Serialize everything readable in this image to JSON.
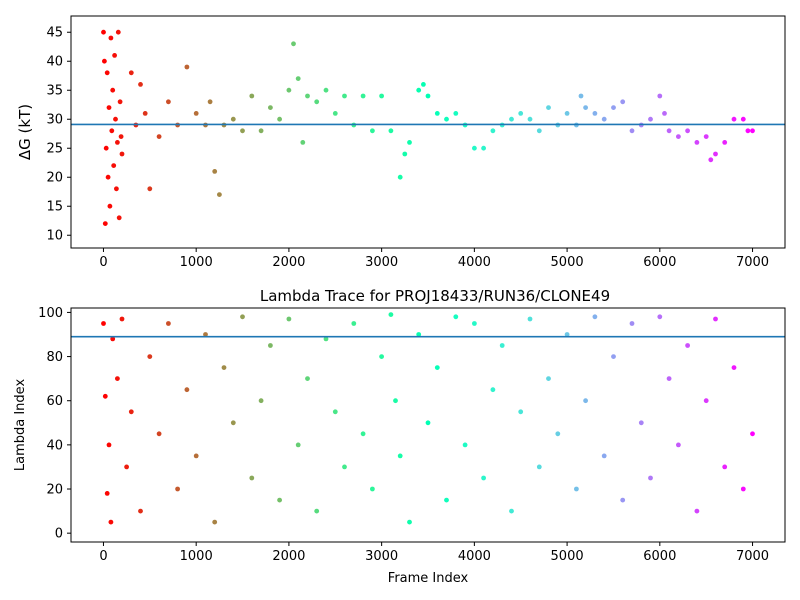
{
  "chart_data": [
    {
      "type": "scatter",
      "title": "",
      "xlabel": "",
      "ylabel": "ΔG (kT)",
      "xlim": [
        -350,
        7350
      ],
      "ylim": [
        7.8,
        47.8
      ],
      "xticks": [
        0,
        1000,
        2000,
        3000,
        4000,
        5000,
        6000,
        7000
      ],
      "yticks": [
        10,
        15,
        20,
        25,
        30,
        35,
        40,
        45
      ],
      "colormap": "rainbow",
      "hline": {
        "y": 29.1,
        "color": "#1f77b4"
      },
      "series": [
        {
          "x": [
            0,
            10,
            20,
            30,
            40,
            50,
            60,
            70,
            80,
            90,
            100,
            110,
            120,
            130,
            140,
            150,
            160,
            170,
            180,
            190,
            200,
            300,
            350,
            400,
            450,
            500,
            600,
            700,
            800,
            900,
            1000,
            1100,
            1150,
            1200,
            1250,
            1300,
            1400,
            1500,
            1600,
            1700,
            1800,
            1900,
            2000,
            2050,
            2100,
            2150,
            2200,
            2300,
            2400,
            2500,
            2600,
            2700,
            2800,
            2900,
            3000,
            3100,
            3200,
            3250,
            3300,
            3400,
            3450,
            3500,
            3600,
            3700,
            3800,
            3900,
            4000,
            4100,
            4200,
            4300,
            4400,
            4500,
            4600,
            4700,
            4800,
            4900,
            5000,
            5100,
            5150,
            5200,
            5300,
            5400,
            5500,
            5600,
            5700,
            5800,
            5900,
            6000,
            6050,
            6100,
            6200,
            6300,
            6400,
            6500,
            6550,
            6600,
            6700,
            6800,
            6900,
            6950,
            7000
          ],
          "y": [
            45,
            40,
            12,
            25,
            38,
            20,
            32,
            15,
            44,
            28,
            35,
            22,
            41,
            30,
            18,
            26,
            45,
            13,
            33,
            27,
            24,
            38,
            29,
            36,
            31,
            18,
            27,
            33,
            29,
            39,
            31,
            29,
            33,
            21,
            17,
            29,
            30,
            28,
            34,
            28,
            32,
            30,
            35,
            43,
            37,
            26,
            34,
            33,
            35,
            31,
            34,
            29,
            34,
            28,
            34,
            28,
            20,
            24,
            26,
            35,
            36,
            34,
            31,
            30,
            31,
            29,
            25,
            25,
            28,
            29,
            30,
            31,
            30,
            28,
            32,
            29,
            31,
            29,
            34,
            32,
            31,
            30,
            32,
            33,
            28,
            29,
            30,
            34,
            31,
            28,
            27,
            28,
            26,
            27,
            23,
            24,
            26,
            30,
            30,
            28,
            28
          ]
        }
      ]
    },
    {
      "type": "scatter",
      "title": "Lambda Trace for PROJ18433/RUN36/CLONE49",
      "xlabel": "Frame Index",
      "ylabel": "Lambda Index",
      "xlim": [
        -350,
        7350
      ],
      "ylim": [
        -4,
        102
      ],
      "xticks": [
        0,
        1000,
        2000,
        3000,
        4000,
        5000,
        6000,
        7000
      ],
      "yticks": [
        0,
        20,
        40,
        60,
        80,
        100
      ],
      "colormap": "rainbow",
      "hline": {
        "y": 89,
        "color": "#1f77b4"
      },
      "series": [
        {
          "x": [
            0,
            20,
            40,
            60,
            80,
            100,
            150,
            200,
            250,
            300,
            400,
            500,
            600,
            700,
            800,
            900,
            1000,
            1100,
            1200,
            1300,
            1400,
            1500,
            1600,
            1700,
            1800,
            1900,
            2000,
            2100,
            2200,
            2300,
            2400,
            2500,
            2600,
            2700,
            2800,
            2900,
            3000,
            3100,
            3150,
            3200,
            3300,
            3400,
            3500,
            3600,
            3700,
            3800,
            3900,
            4000,
            4100,
            4200,
            4300,
            4400,
            4500,
            4600,
            4700,
            4800,
            4900,
            5000,
            5100,
            5200,
            5300,
            5400,
            5500,
            5600,
            5700,
            5800,
            5900,
            6000,
            6100,
            6200,
            6300,
            6400,
            6500,
            6600,
            6700,
            6800,
            6900,
            7000
          ],
          "y": [
            95,
            62,
            18,
            40,
            5,
            88,
            70,
            97,
            30,
            55,
            10,
            80,
            45,
            95,
            20,
            65,
            35,
            90,
            5,
            75,
            50,
            98,
            25,
            60,
            85,
            15,
            97,
            40,
            70,
            10,
            88,
            55,
            30,
            95,
            45,
            20,
            80,
            99,
            60,
            35,
            5,
            90,
            50,
            75,
            15,
            98,
            40,
            95,
            25,
            65,
            85,
            10,
            55,
            97,
            30,
            70,
            45,
            90,
            20,
            60,
            98,
            35,
            80,
            15,
            95,
            50,
            25,
            98,
            70,
            40,
            85,
            10,
            60,
            97,
            30,
            75,
            20,
            45
          ]
        }
      ]
    }
  ]
}
